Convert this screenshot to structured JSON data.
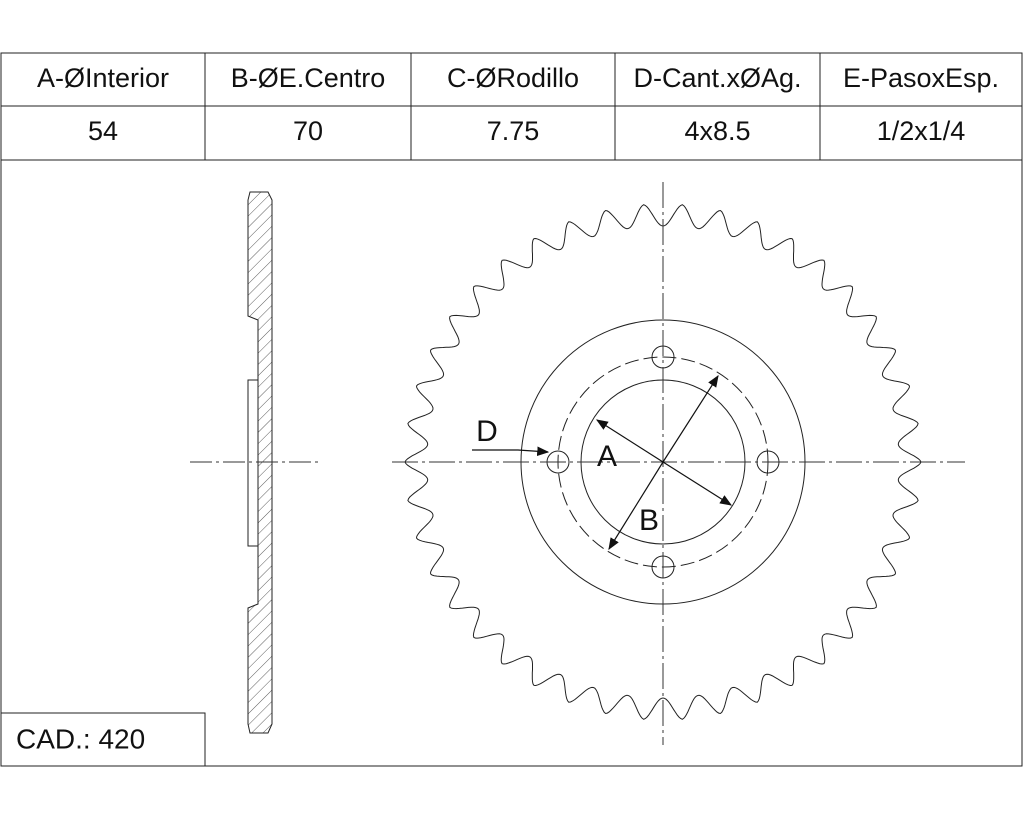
{
  "table": {
    "headers": [
      "A-ØInterior",
      "B-ØE.Centro",
      "C-ØRodillo",
      "D-Cant.xØAg.",
      "E-PasoxEsp."
    ],
    "values": [
      "54",
      "70",
      "7.75",
      "4x8.5",
      "1/2x1/4"
    ]
  },
  "labels": {
    "a": "A",
    "b": "B",
    "d": "D"
  },
  "cad": "CAD.: 420"
}
